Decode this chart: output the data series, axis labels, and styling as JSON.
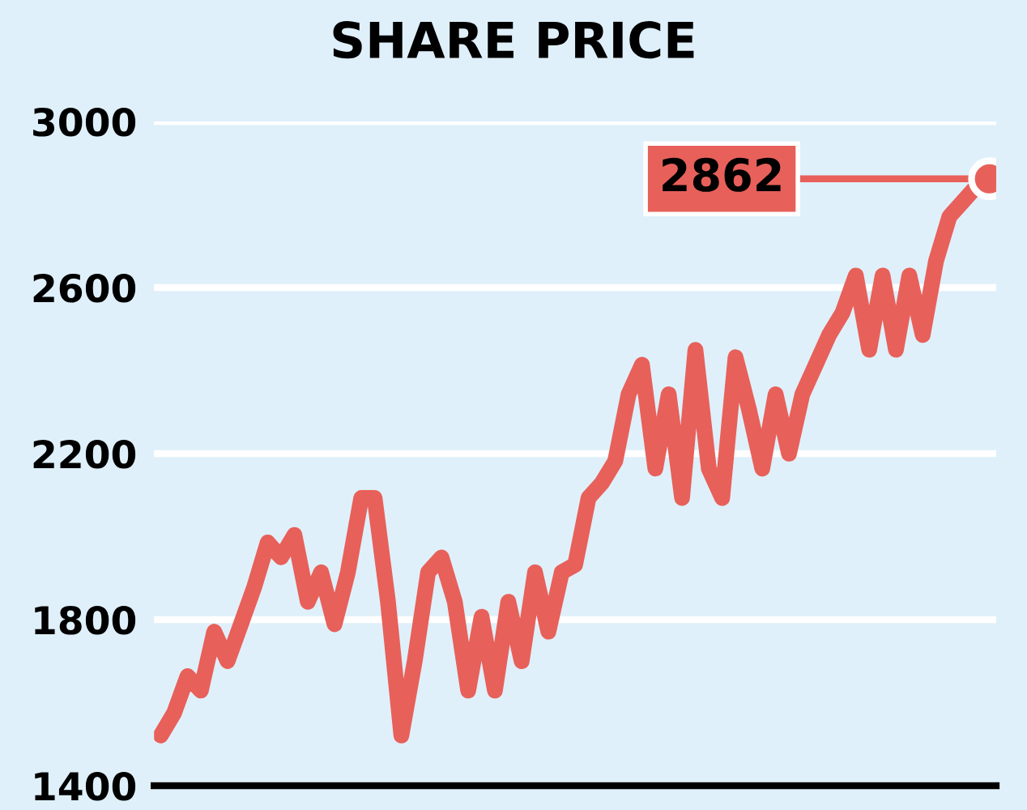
{
  "chart_data": {
    "type": "line",
    "title": "SHARE PRICE",
    "categories": [
      null,
      null,
      null,
      null,
      null,
      null,
      null,
      null,
      null,
      null,
      null,
      null,
      null,
      null,
      null,
      null,
      null,
      null,
      null,
      null,
      null,
      null,
      null,
      null,
      null,
      null,
      null,
      null,
      null,
      null,
      null,
      null,
      null,
      null,
      null,
      null,
      null,
      null,
      null,
      null,
      null,
      null,
      null,
      null,
      null,
      null,
      null,
      null,
      null,
      null,
      null,
      null,
      null,
      null,
      null,
      null,
      null,
      null,
      null,
      null,
      null,
      null,
      null
    ],
    "series": [
      {
        "color": "#e8605a",
        "values": [
          1521,
          1575,
          1664,
          1629,
          1771,
          1700,
          1789,
          1879,
          1986,
          1950,
          2004,
          1843,
          1914,
          1789,
          1914,
          2093,
          2093,
          1843,
          1521,
          1700,
          1914,
          1950,
          1843,
          1629,
          1807,
          1629,
          1843,
          1700,
          1914,
          1771,
          1914,
          1932,
          2093,
          2129,
          2182,
          2343,
          2414,
          2164,
          2343,
          2093,
          2450,
          2164,
          2093,
          2432,
          2307,
          2164,
          2343,
          2200,
          2343,
          2414,
          2486,
          2539,
          2629,
          2450,
          2629,
          2450,
          2629,
          2486,
          2664,
          2771,
          2807,
          2843,
          2862
        ]
      }
    ],
    "ylim": [
      1400,
      3000
    ],
    "yticks": [
      1400,
      1800,
      2200,
      2600,
      3000
    ],
    "grid": "y",
    "tick_labels": "y",
    "marker": "none",
    "line_style": "solid",
    "annotations": [
      "2862"
    ]
  }
}
